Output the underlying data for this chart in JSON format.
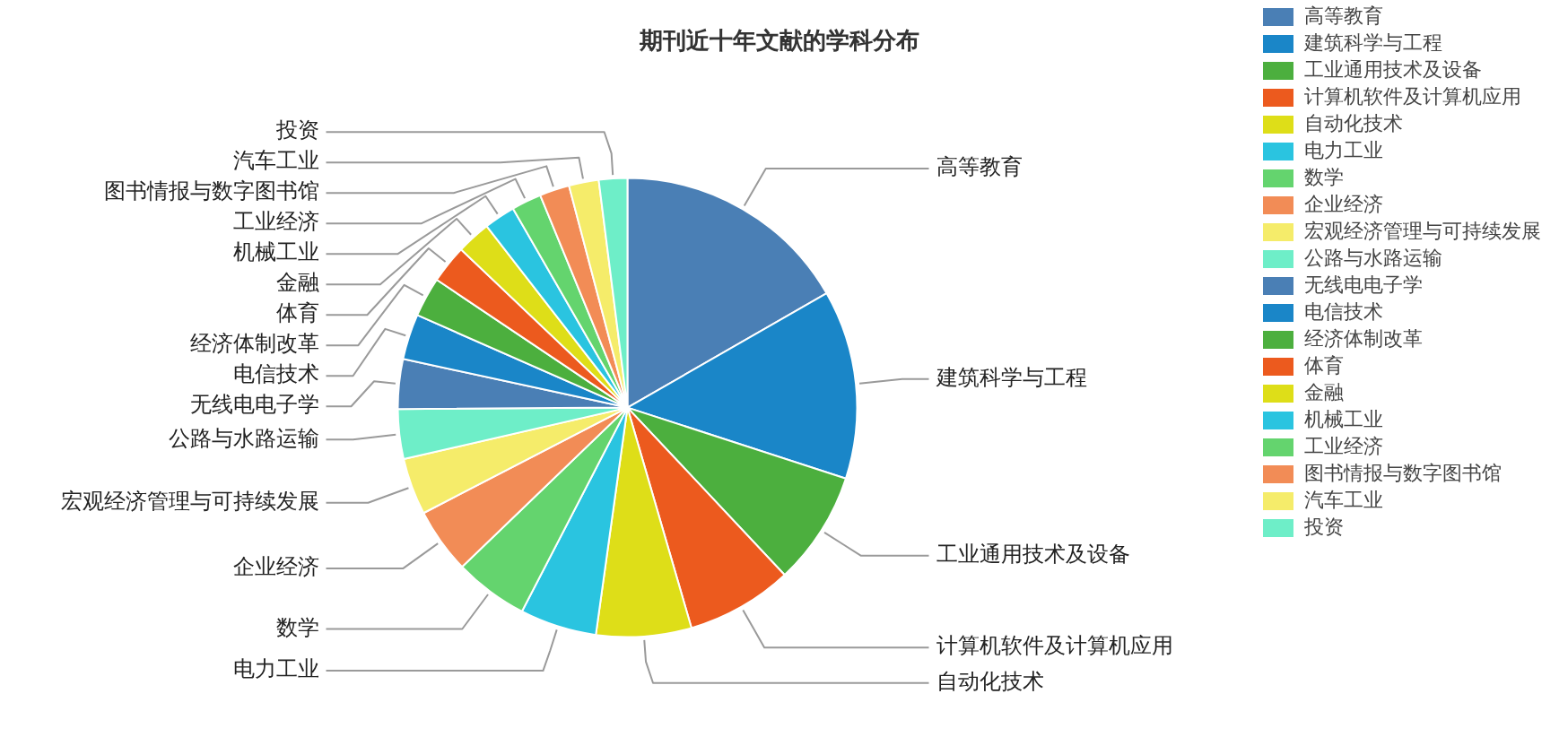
{
  "chart_data": {
    "type": "pie",
    "title": "期刊近十年文献的学科分布",
    "categories": [
      "高等教育",
      "建筑科学与工程",
      "工业通用技术及设备",
      "计算机软件及计算机应用",
      "自动化技术",
      "电力工业",
      "数学",
      "企业经济",
      "宏观经济管理与可持续发展",
      "公路与水路运输",
      "无线电电子学",
      "电信技术",
      "经济体制改革",
      "体育",
      "金融",
      "机械工业",
      "工业经济",
      "图书情报与数字图书馆",
      "汽车工业",
      "投资"
    ],
    "values": [
      16.7,
      13.3,
      8.0,
      7.5,
      6.7,
      5.4,
      5.2,
      4.6,
      4.0,
      3.5,
      3.5,
      3.2,
      2.8,
      2.7,
      2.4,
      2.2,
      2.1,
      2.1,
      2.1,
      2.0
    ],
    "colors": [
      "#4a7fb5",
      "#1a86c8",
      "#4caf3e",
      "#ec5a1e",
      "#dede18",
      "#2ac4e0",
      "#64d46e",
      "#f28c56",
      "#f5ec6a",
      "#6eeec8",
      "#4a7fb5",
      "#1a86c8",
      "#4caf3e",
      "#ec5a1e",
      "#dede18",
      "#2ac4e0",
      "#64d46e",
      "#f28c56",
      "#f5ec6a",
      "#6eeec8"
    ],
    "legend": "right"
  }
}
